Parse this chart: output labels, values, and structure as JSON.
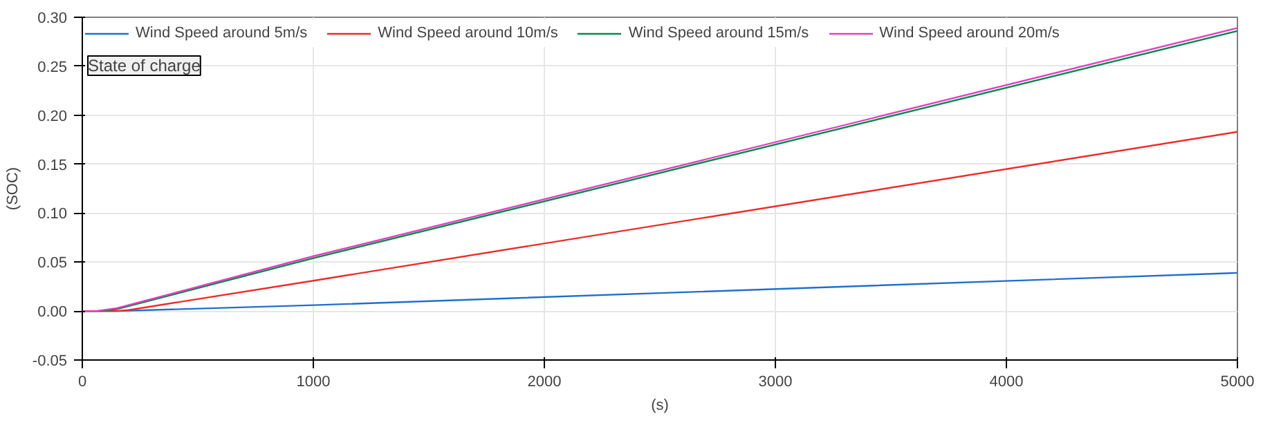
{
  "chart_data": {
    "type": "line",
    "xlabel": "(s)",
    "ylabel": "(SOC)",
    "annotations": [
      "State of charge"
    ],
    "xlim": [
      0,
      5000
    ],
    "xticks": [
      0,
      1000,
      2000,
      3000,
      4000,
      5000
    ],
    "ylim": [
      -0.05,
      0.3
    ],
    "yticks": [
      {
        "value": -0.05,
        "label": "-0.05"
      },
      {
        "value": 0,
        "label": "0.00"
      },
      {
        "value": 0.05,
        "label": "0.05"
      },
      {
        "value": 0.1,
        "label": "0.10"
      },
      {
        "value": 0.15,
        "label": "0.15"
      },
      {
        "value": 0.2,
        "label": "0.20"
      },
      {
        "value": 0.25,
        "label": "0.25"
      },
      {
        "value": 0.3,
        "label": "0.30"
      }
    ],
    "grid": true,
    "legend": "top left",
    "line_style": "solid",
    "series": [
      {
        "name": "Wind Speed around 5m/s",
        "color": "#1f6fcf",
        "x": [
          0,
          150,
          1000,
          5000
        ],
        "values": [
          0,
          0,
          0.006,
          0.039
        ]
      },
      {
        "name": "Wind Speed around 10m/s",
        "color": "#ee2a2a",
        "x": [
          0,
          150,
          200,
          1000,
          5000
        ],
        "values": [
          0,
          0,
          0.001,
          0.031,
          0.183
        ]
      },
      {
        "name": "Wind Speed around 15m/s",
        "color": "#008a4a",
        "x": [
          0,
          80,
          150,
          1000,
          5000
        ],
        "values": [
          0,
          0,
          0.002,
          0.054,
          0.286
        ]
      },
      {
        "name": "Wind Speed around 20m/s",
        "color": "#e040c0",
        "x": [
          0,
          60,
          150,
          1000,
          5000
        ],
        "values": [
          0,
          0,
          0.003,
          0.056,
          0.289
        ]
      }
    ]
  }
}
